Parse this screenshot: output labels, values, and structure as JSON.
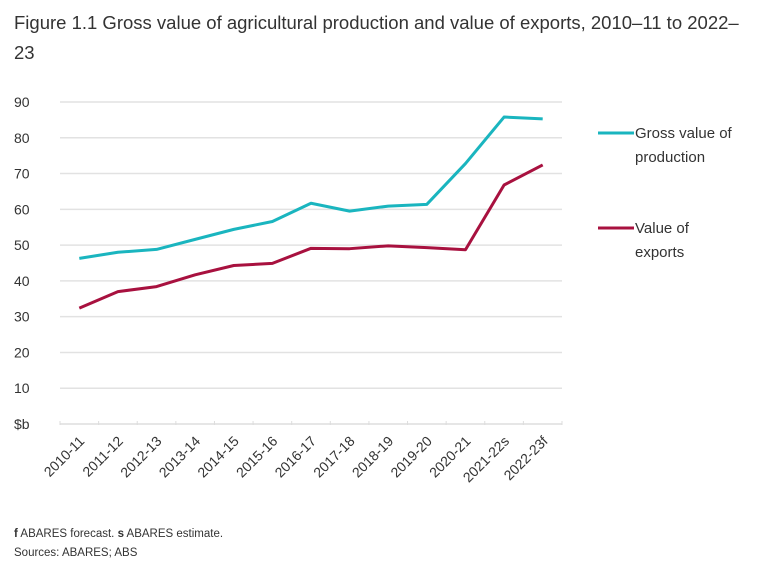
{
  "chart_data": {
    "type": "line",
    "title": "Figure 1.1 Gross value of agricultural production and value of exports, 2010–11 to 2022–23",
    "categories": [
      "2010-11",
      "2011-12",
      "2012-13",
      "2013-14",
      "2014-15",
      "2015-16",
      "2016-17",
      "2017-18",
      "2018-19",
      "2019-20",
      "2020-21",
      "2021-22s",
      "2022-23f"
    ],
    "series": [
      {
        "name": "Gross value of production",
        "color": "#1ab5bf",
        "values": [
          46.3,
          48.0,
          48.8,
          51.6,
          54.4,
          56.6,
          61.7,
          59.5,
          60.9,
          61.4,
          72.8,
          85.8,
          85.3
        ]
      },
      {
        "name": "Value of exports",
        "color": "#a8113f",
        "values": [
          32.4,
          37.0,
          38.4,
          41.7,
          44.3,
          44.9,
          49.1,
          49.0,
          49.8,
          49.3,
          48.7,
          66.8,
          72.4
        ]
      }
    ],
    "ylabel": "$b",
    "yticks": [
      "$b",
      "10",
      "20",
      "30",
      "40",
      "50",
      "60",
      "70",
      "80",
      "90"
    ],
    "ylim": [
      0,
      90
    ],
    "grid": true,
    "legend": "right"
  },
  "footnote": {
    "f_key": "f",
    "f_text": " ABARES forecast. ",
    "s_key": "s",
    "s_text": " ABARES estimate."
  },
  "sources": "Sources: ABARES; ABS"
}
